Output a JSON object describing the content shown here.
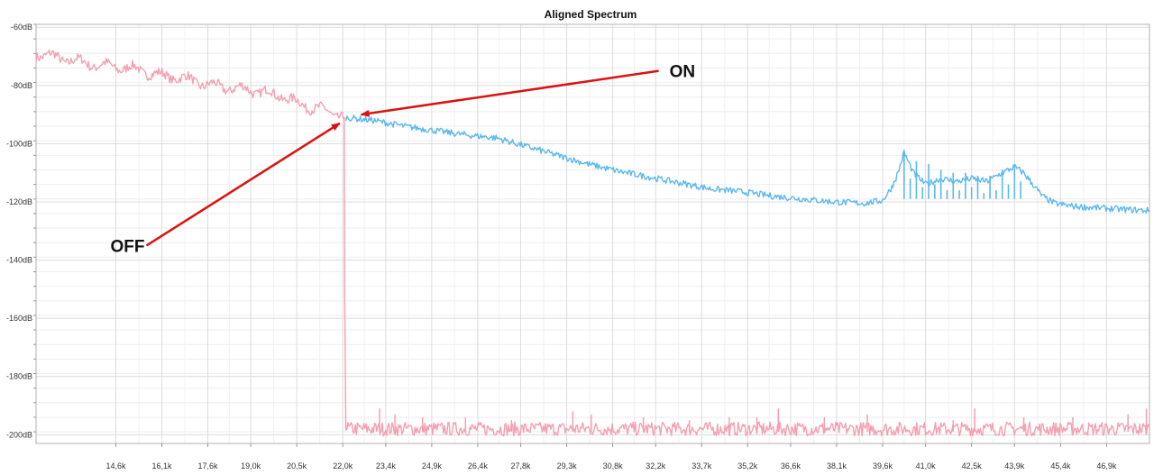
{
  "chart_data": {
    "type": "line",
    "title": "Aligned Spectrum",
    "xlabel": "",
    "ylabel": "",
    "xunit": "Hz",
    "xlim": [
      12000,
      48300
    ],
    "ylim": [
      -203,
      -59
    ],
    "grid": true,
    "xticks": [
      {
        "v": 14600,
        "label": "14,6k"
      },
      {
        "v": 16100,
        "label": "16,1k"
      },
      {
        "v": 17600,
        "label": "17,6k"
      },
      {
        "v": 19000,
        "label": "19,0k"
      },
      {
        "v": 20500,
        "label": "20,5k"
      },
      {
        "v": 22000,
        "label": "22,0k"
      },
      {
        "v": 23400,
        "label": "23,4k"
      },
      {
        "v": 24900,
        "label": "24,9k"
      },
      {
        "v": 26400,
        "label": "26,4k"
      },
      {
        "v": 27800,
        "label": "27,8k"
      },
      {
        "v": 29300,
        "label": "29,3k"
      },
      {
        "v": 30800,
        "label": "30,8k"
      },
      {
        "v": 32200,
        "label": "32,2k"
      },
      {
        "v": 33700,
        "label": "33,7k"
      },
      {
        "v": 35200,
        "label": "35,2k"
      },
      {
        "v": 36600,
        "label": "36,6k"
      },
      {
        "v": 38100,
        "label": "38,1k"
      },
      {
        "v": 39600,
        "label": "39,6k"
      },
      {
        "v": 41000,
        "label": "41,0k"
      },
      {
        "v": 42500,
        "label": "42,5k"
      },
      {
        "v": 43900,
        "label": "43,9k"
      },
      {
        "v": 45400,
        "label": "45,4k"
      },
      {
        "v": 46900,
        "label": "46,9k"
      }
    ],
    "yticks": [
      {
        "v": -60,
        "label": "-60dB"
      },
      {
        "v": -80,
        "label": "-80dB"
      },
      {
        "v": -100,
        "label": "-100dB"
      },
      {
        "v": -120,
        "label": "-120dB"
      },
      {
        "v": -140,
        "label": "-140dB"
      },
      {
        "v": -160,
        "label": "-160dB"
      },
      {
        "v": -180,
        "label": "-180dB"
      },
      {
        "v": -200,
        "label": "-200dB"
      }
    ],
    "series": [
      {
        "color": "#f4a0b0",
        "x": [
          12000,
          12500,
          13000,
          13500,
          14000,
          14500,
          15000,
          15500,
          16000,
          16500,
          17000,
          17500,
          18000,
          18500,
          19000,
          19500,
          20000,
          20500,
          21000,
          21500,
          21900,
          22050,
          22060,
          22100,
          22200,
          23000,
          24000,
          25000,
          26000,
          27000,
          28000,
          29000,
          30000,
          31000,
          32000,
          33000,
          34000,
          35000,
          36000,
          37000,
          38000,
          39000,
          40000,
          41000,
          42000,
          43000,
          44000,
          45000,
          46000,
          47000,
          48300
        ],
        "y": [
          -69,
          -70,
          -71,
          -72,
          -73,
          -73.5,
          -74,
          -75,
          -76.5,
          -77,
          -78,
          -79.5,
          -80.5,
          -81,
          -81.5,
          -82.5,
          -83.5,
          -86,
          -87.5,
          -89,
          -90,
          -91,
          -150,
          -197,
          -198,
          -198,
          -198,
          -198,
          -198,
          -198,
          -198,
          -198,
          -198,
          -198,
          -198,
          -198,
          -198,
          -198,
          -198,
          -198,
          -198,
          -198,
          -198,
          -198,
          -198,
          -198,
          -198,
          -198,
          -198,
          -198,
          -198
        ],
        "spikes": [
          {
            "x": 23200,
            "y": -191
          },
          {
            "x": 23700,
            "y": -193
          },
          {
            "x": 24600,
            "y": -194
          },
          {
            "x": 26000,
            "y": -194
          },
          {
            "x": 27500,
            "y": -195
          },
          {
            "x": 29500,
            "y": -192
          },
          {
            "x": 30100,
            "y": -193
          },
          {
            "x": 31800,
            "y": -194
          },
          {
            "x": 33300,
            "y": -195
          },
          {
            "x": 34600,
            "y": -194
          },
          {
            "x": 35500,
            "y": -194
          },
          {
            "x": 36200,
            "y": -191
          },
          {
            "x": 37700,
            "y": -194
          },
          {
            "x": 39100,
            "y": -193
          },
          {
            "x": 41900,
            "y": -195
          },
          {
            "x": 42600,
            "y": -191
          },
          {
            "x": 44200,
            "y": -194
          },
          {
            "x": 45800,
            "y": -194
          },
          {
            "x": 47600,
            "y": -193
          },
          {
            "x": 48200,
            "y": -191
          }
        ]
      },
      {
        "color": "#5bb8ee",
        "x": [
          22100,
          22500,
          23000,
          23500,
          24000,
          25000,
          26000,
          27000,
          28000,
          29000,
          30000,
          31000,
          32000,
          33000,
          34000,
          35000,
          36000,
          37000,
          38000,
          39000,
          39600,
          39900,
          40100,
          40300,
          40600,
          41000,
          41500,
          42000,
          42500,
          43000,
          43500,
          43900,
          44200,
          44500,
          44800,
          45200,
          45800,
          46500,
          47300,
          48300
        ],
        "y": [
          -91,
          -91.5,
          -92,
          -93,
          -94,
          -95.5,
          -97,
          -98,
          -101,
          -104,
          -107,
          -109.5,
          -111.5,
          -113.5,
          -115.5,
          -116.5,
          -118,
          -119,
          -120,
          -120.5,
          -119.5,
          -115,
          -110,
          -103,
          -110,
          -114,
          -112,
          -113,
          -112,
          -113,
          -110,
          -108,
          -110,
          -114,
          -118,
          -120.5,
          -121.5,
          -122,
          -122.5,
          -123
        ],
        "bursts": [
          {
            "x": 40300,
            "y": -103
          },
          {
            "x": 40500,
            "y": -112
          },
          {
            "x": 40700,
            "y": -106
          },
          {
            "x": 40900,
            "y": -115
          },
          {
            "x": 41100,
            "y": -107
          },
          {
            "x": 41300,
            "y": -114
          },
          {
            "x": 41500,
            "y": -109
          },
          {
            "x": 41700,
            "y": -116
          },
          {
            "x": 41900,
            "y": -110
          },
          {
            "x": 42100,
            "y": -116
          },
          {
            "x": 42300,
            "y": -110
          },
          {
            "x": 42500,
            "y": -115
          },
          {
            "x": 42700,
            "y": -111
          },
          {
            "x": 42900,
            "y": -117
          },
          {
            "x": 43100,
            "y": -111
          },
          {
            "x": 43300,
            "y": -116
          },
          {
            "x": 43500,
            "y": -109
          },
          {
            "x": 43700,
            "y": -114
          },
          {
            "x": 43900,
            "y": -107
          },
          {
            "x": 44100,
            "y": -113
          }
        ]
      }
    ],
    "annotations": [
      {
        "text": "ON",
        "arrow_to": {
          "x": 22600,
          "y": -90
        },
        "arrow_from": {
          "x": 32300,
          "y": -75
        }
      },
      {
        "text": "OFF",
        "arrow_to": {
          "x": 21900,
          "y": -93
        },
        "arrow_from": {
          "x": 15600,
          "y": -135
        }
      }
    ],
    "arrow_color": "#dd1111"
  }
}
